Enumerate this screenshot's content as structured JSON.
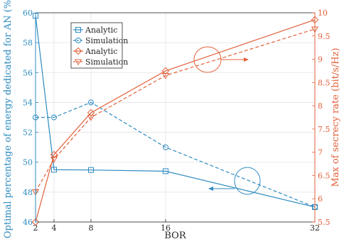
{
  "chart_data": {
    "type": "line",
    "xlabel": "BOR",
    "x": [
      2,
      4,
      8,
      16,
      32
    ],
    "xlim": [
      2,
      32
    ],
    "xticks": [
      2,
      4,
      8,
      16,
      32
    ],
    "left_axis": {
      "label": "Optimal percentage of energy dedicated for AN (%)",
      "color": "#2E8BC0",
      "ylim": [
        46,
        60
      ],
      "ticks": [
        46,
        48,
        50,
        52,
        54,
        56,
        58,
        60
      ]
    },
    "right_axis": {
      "label": "Max of secrecy rate (bit/s/Hz)",
      "color": "#E2603A",
      "ylim": [
        5.5,
        10
      ],
      "ticks": [
        5.5,
        6,
        6.5,
        7,
        7.5,
        8,
        8.5,
        9,
        9.5,
        10
      ]
    },
    "series": [
      {
        "name": "Analytic",
        "axis": "left",
        "color": "#2E8BC0",
        "dash": "solid",
        "marker": "square",
        "values": [
          59.8,
          49.5,
          49.48,
          49.4,
          47.0
        ]
      },
      {
        "name": "Simulation",
        "axis": "left",
        "color": "#2E8BC0",
        "dash": "dashed",
        "marker": "circle",
        "values": [
          53.0,
          53.0,
          54.0,
          51.0,
          47.0
        ]
      },
      {
        "name": "Analytic",
        "axis": "right",
        "color": "#E2603A",
        "dash": "solid",
        "marker": "diamond",
        "values": [
          5.5,
          6.95,
          7.85,
          8.75,
          9.85
        ]
      },
      {
        "name": "Simulation",
        "axis": "right",
        "color": "#E2603A",
        "dash": "dashed",
        "marker": "triangle-down",
        "values": [
          6.15,
          6.85,
          7.75,
          8.65,
          9.65
        ]
      }
    ],
    "legend_position": "top-left",
    "grid": true
  }
}
